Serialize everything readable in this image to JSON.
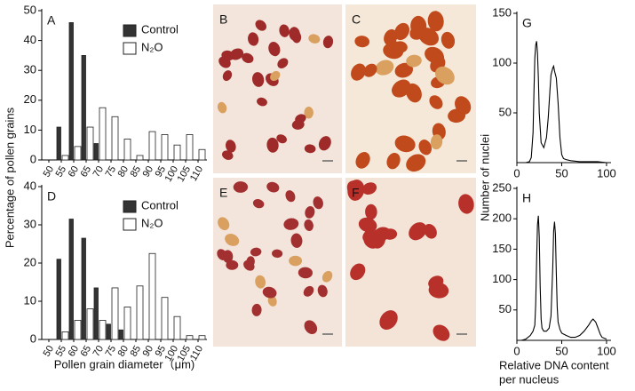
{
  "chart_data": [
    {
      "type": "bar",
      "panel_label": "A",
      "categories": [
        "50",
        "55",
        "60",
        "65",
        "70",
        "75",
        "80",
        "85",
        "90",
        "95",
        "100",
        "105",
        "110"
      ],
      "series": [
        {
          "name": "Control",
          "color": "#333333",
          "values": [
            0,
            11,
            46,
            35,
            5.5,
            0,
            0,
            0,
            0,
            0,
            0,
            0,
            0
          ]
        },
        {
          "name": "N₂O",
          "color": "#ffffff",
          "values": [
            0,
            1.5,
            4.5,
            11,
            17.5,
            14.5,
            7,
            1.5,
            9.5,
            8.5,
            5,
            8.5,
            3.5
          ]
        }
      ],
      "ylim": [
        0,
        50
      ],
      "yticks": [
        0,
        10,
        20,
        30,
        40,
        50
      ]
    },
    {
      "type": "bar",
      "panel_label": "D",
      "categories": [
        "50",
        "55",
        "60",
        "65",
        "70",
        "75",
        "80",
        "85",
        "90",
        "95",
        "100",
        "105",
        "110"
      ],
      "series": [
        {
          "name": "Control",
          "color": "#333333",
          "values": [
            0,
            21,
            31.5,
            26.5,
            13.5,
            4,
            2.5,
            0,
            0,
            0,
            0,
            0,
            0
          ]
        },
        {
          "name": "N₂O",
          "color": "#ffffff",
          "values": [
            0,
            2,
            5,
            8,
            5,
            13.5,
            8.5,
            14,
            22.5,
            11,
            6,
            1,
            1
          ]
        }
      ],
      "ylim": [
        0,
        40
      ],
      "yticks": [
        0,
        10,
        20,
        30,
        40
      ]
    },
    {
      "type": "line",
      "panel_label": "G",
      "color": "#000000",
      "x": [
        5,
        10,
        14,
        16,
        18,
        19,
        20,
        21,
        22,
        23,
        24,
        25,
        27,
        30,
        33,
        35,
        37,
        38,
        40,
        41,
        42,
        44,
        46,
        48,
        50,
        52,
        55,
        60,
        70,
        80,
        90,
        100
      ],
      "values": [
        0,
        0,
        1,
        5,
        30,
        70,
        105,
        118,
        122,
        110,
        85,
        50,
        20,
        15,
        25,
        45,
        75,
        88,
        95,
        97,
        92,
        85,
        60,
        25,
        8,
        4,
        3,
        2,
        1,
        1,
        1,
        0
      ],
      "xlim": [
        0,
        105
      ],
      "xticks": [
        0,
        50,
        100
      ],
      "ylim": [
        0,
        150
      ],
      "yticks": [
        50,
        100,
        150
      ]
    },
    {
      "type": "line",
      "panel_label": "H",
      "color": "#000000",
      "x": [
        5,
        10,
        15,
        18,
        20,
        21,
        22,
        23,
        24,
        25,
        26,
        27,
        28,
        30,
        33,
        36,
        38,
        40,
        41,
        42,
        43,
        44,
        45,
        46,
        48,
        50,
        55,
        60,
        65,
        70,
        75,
        80,
        83,
        85,
        88,
        90,
        93,
        95,
        100
      ],
      "values": [
        0,
        2,
        8,
        15,
        25,
        60,
        130,
        190,
        205,
        170,
        90,
        35,
        20,
        15,
        15,
        20,
        40,
        120,
        180,
        195,
        175,
        110,
        55,
        30,
        18,
        12,
        8,
        5,
        5,
        8,
        15,
        25,
        32,
        35,
        30,
        22,
        10,
        5,
        2
      ],
      "xlim": [
        0,
        105
      ],
      "xticks": [
        0,
        50,
        100
      ],
      "ylim": [
        0,
        250
      ],
      "yticks": [
        50,
        100,
        150,
        200,
        250
      ]
    }
  ],
  "micrographs": [
    "B",
    "C",
    "E",
    "F"
  ],
  "labels": {
    "bar_y": "Percentage of pollen grains",
    "bar_x": "Pollen grain diameter（μm)",
    "line_y": "Number of nuclei",
    "line_x": [
      "Relative DNA content",
      "per nucleus"
    ]
  }
}
